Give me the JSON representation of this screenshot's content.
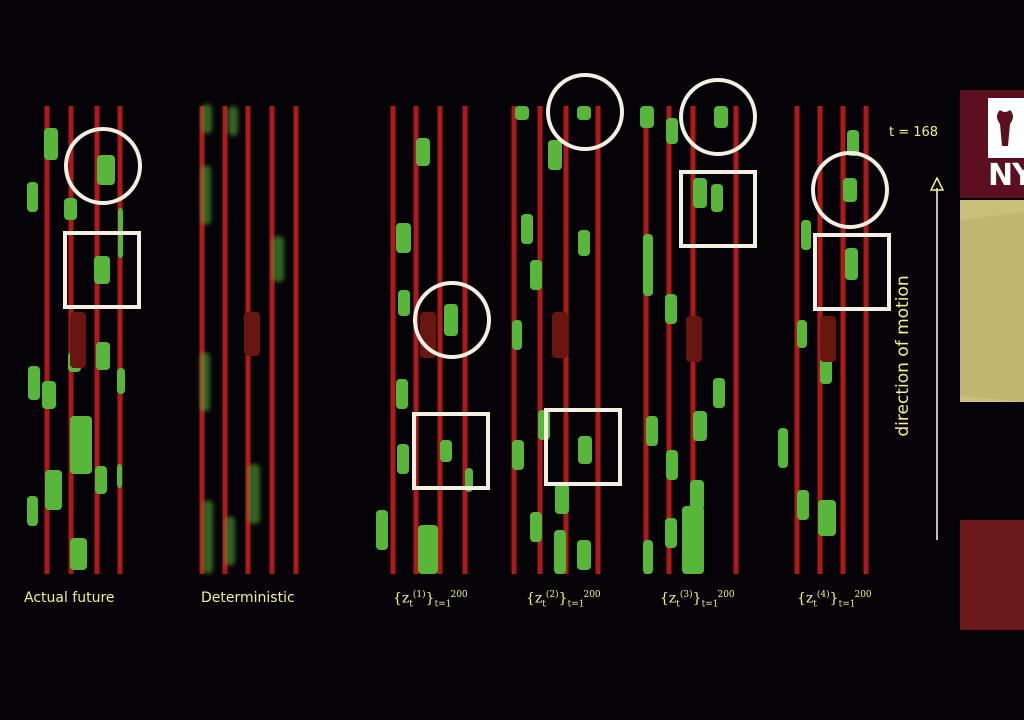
{
  "panels": [
    {
      "key": "actual",
      "caption": "Actual future"
    },
    {
      "key": "deterministic",
      "caption": "Deterministic"
    },
    {
      "key": "z1",
      "caption_base": "{z",
      "caption_sub": "t",
      "caption_sup": "(1)",
      "caption_close": "}",
      "caption_upper": "200",
      "caption_lower": "t=1"
    },
    {
      "key": "z2",
      "caption_base": "{z",
      "caption_sub": "t",
      "caption_sup": "(2)",
      "caption_close": "}",
      "caption_upper": "200",
      "caption_lower": "t=1"
    },
    {
      "key": "z3",
      "caption_base": "{z",
      "caption_sub": "t",
      "caption_sup": "(3)",
      "caption_close": "}",
      "caption_upper": "200",
      "caption_lower": "t=1"
    },
    {
      "key": "z4",
      "caption_base": "{z",
      "caption_sub": "t",
      "caption_sup": "(4)",
      "caption_close": "}",
      "caption_upper": "200",
      "caption_lower": "t=1"
    }
  ],
  "time_label": "t = 168",
  "motion_label": "direction of motion",
  "logo_text": "NY",
  "colors": {
    "background": "#050308",
    "lane": "#b0191a",
    "car": "#58b63a",
    "ego": "#6a1610",
    "highlight": "#f3f0e2",
    "text": "#f4f08c",
    "logo_purple": "#5b0f1f",
    "logo_tan": "#c9c07a",
    "logo_red": "#6a1a1a"
  },
  "icons": [
    "torch-icon",
    "up-arrow-icon"
  ]
}
